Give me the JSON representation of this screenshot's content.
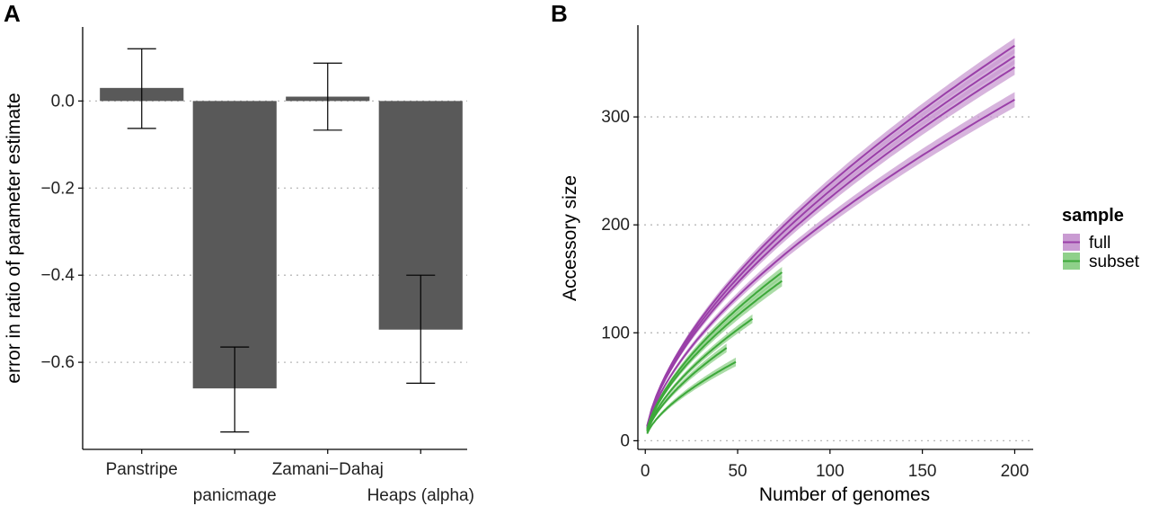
{
  "chart_data": [
    {
      "panel": "A",
      "type": "bar",
      "categories": [
        "Panstripe",
        "panicmage",
        "Zamani−Dahaj",
        "Heaps (alpha)"
      ],
      "values": [
        0.03,
        -0.66,
        0.01,
        -0.525
      ],
      "error_low": [
        -0.063,
        -0.76,
        -0.067,
        -0.648
      ],
      "error_high": [
        0.12,
        -0.565,
        0.087,
        -0.4
      ],
      "ylabel": "error in ratio of parameter estimate",
      "xlabel": "",
      "ylim": [
        -0.8,
        0.17
      ],
      "yticks": [
        0.0,
        -0.2,
        -0.4,
        -0.6
      ],
      "ytick_labels": [
        "0.0",
        "−0.2",
        "−0.4",
        "−0.6"
      ],
      "grid": "horizontal dotted",
      "bar_color": "#595959"
    },
    {
      "panel": "B",
      "type": "line",
      "xlabel": "Number of genomes",
      "ylabel": "Accessory size",
      "xlim": [
        -4,
        210
      ],
      "ylim": [
        -8,
        385
      ],
      "xticks": [
        0,
        50,
        100,
        150,
        200
      ],
      "xtick_labels": [
        "0",
        "50",
        "100",
        "150",
        "200"
      ],
      "yticks": [
        0,
        100,
        200,
        300
      ],
      "ytick_labels": [
        "0",
        "100",
        "200",
        "300"
      ],
      "grid": "horizontal dotted",
      "legend": {
        "title": "sample",
        "position": "right",
        "entries": [
          "full",
          "subset"
        ]
      },
      "colors": {
        "full": "#9a3fa8",
        "full_band": "#c99bd2",
        "subset": "#3da83a",
        "subset_band": "#8fd08a"
      },
      "series": [
        {
          "name": "full",
          "n_max": 200,
          "end_value": 366,
          "band": 7
        },
        {
          "name": "full",
          "n_max": 200,
          "end_value": 356,
          "band": 7
        },
        {
          "name": "full",
          "n_max": 200,
          "end_value": 346,
          "band": 7
        },
        {
          "name": "full",
          "n_max": 200,
          "end_value": 316,
          "band": 7
        },
        {
          "name": "subset",
          "n_max": 74,
          "end_value": 156,
          "band": 5
        },
        {
          "name": "subset",
          "n_max": 74,
          "end_value": 148,
          "band": 5
        },
        {
          "name": "subset",
          "n_max": 58,
          "end_value": 113,
          "band": 4
        },
        {
          "name": "subset",
          "n_max": 44,
          "end_value": 86,
          "band": 4
        },
        {
          "name": "subset",
          "n_max": 49,
          "end_value": 73,
          "band": 4
        }
      ]
    }
  ]
}
